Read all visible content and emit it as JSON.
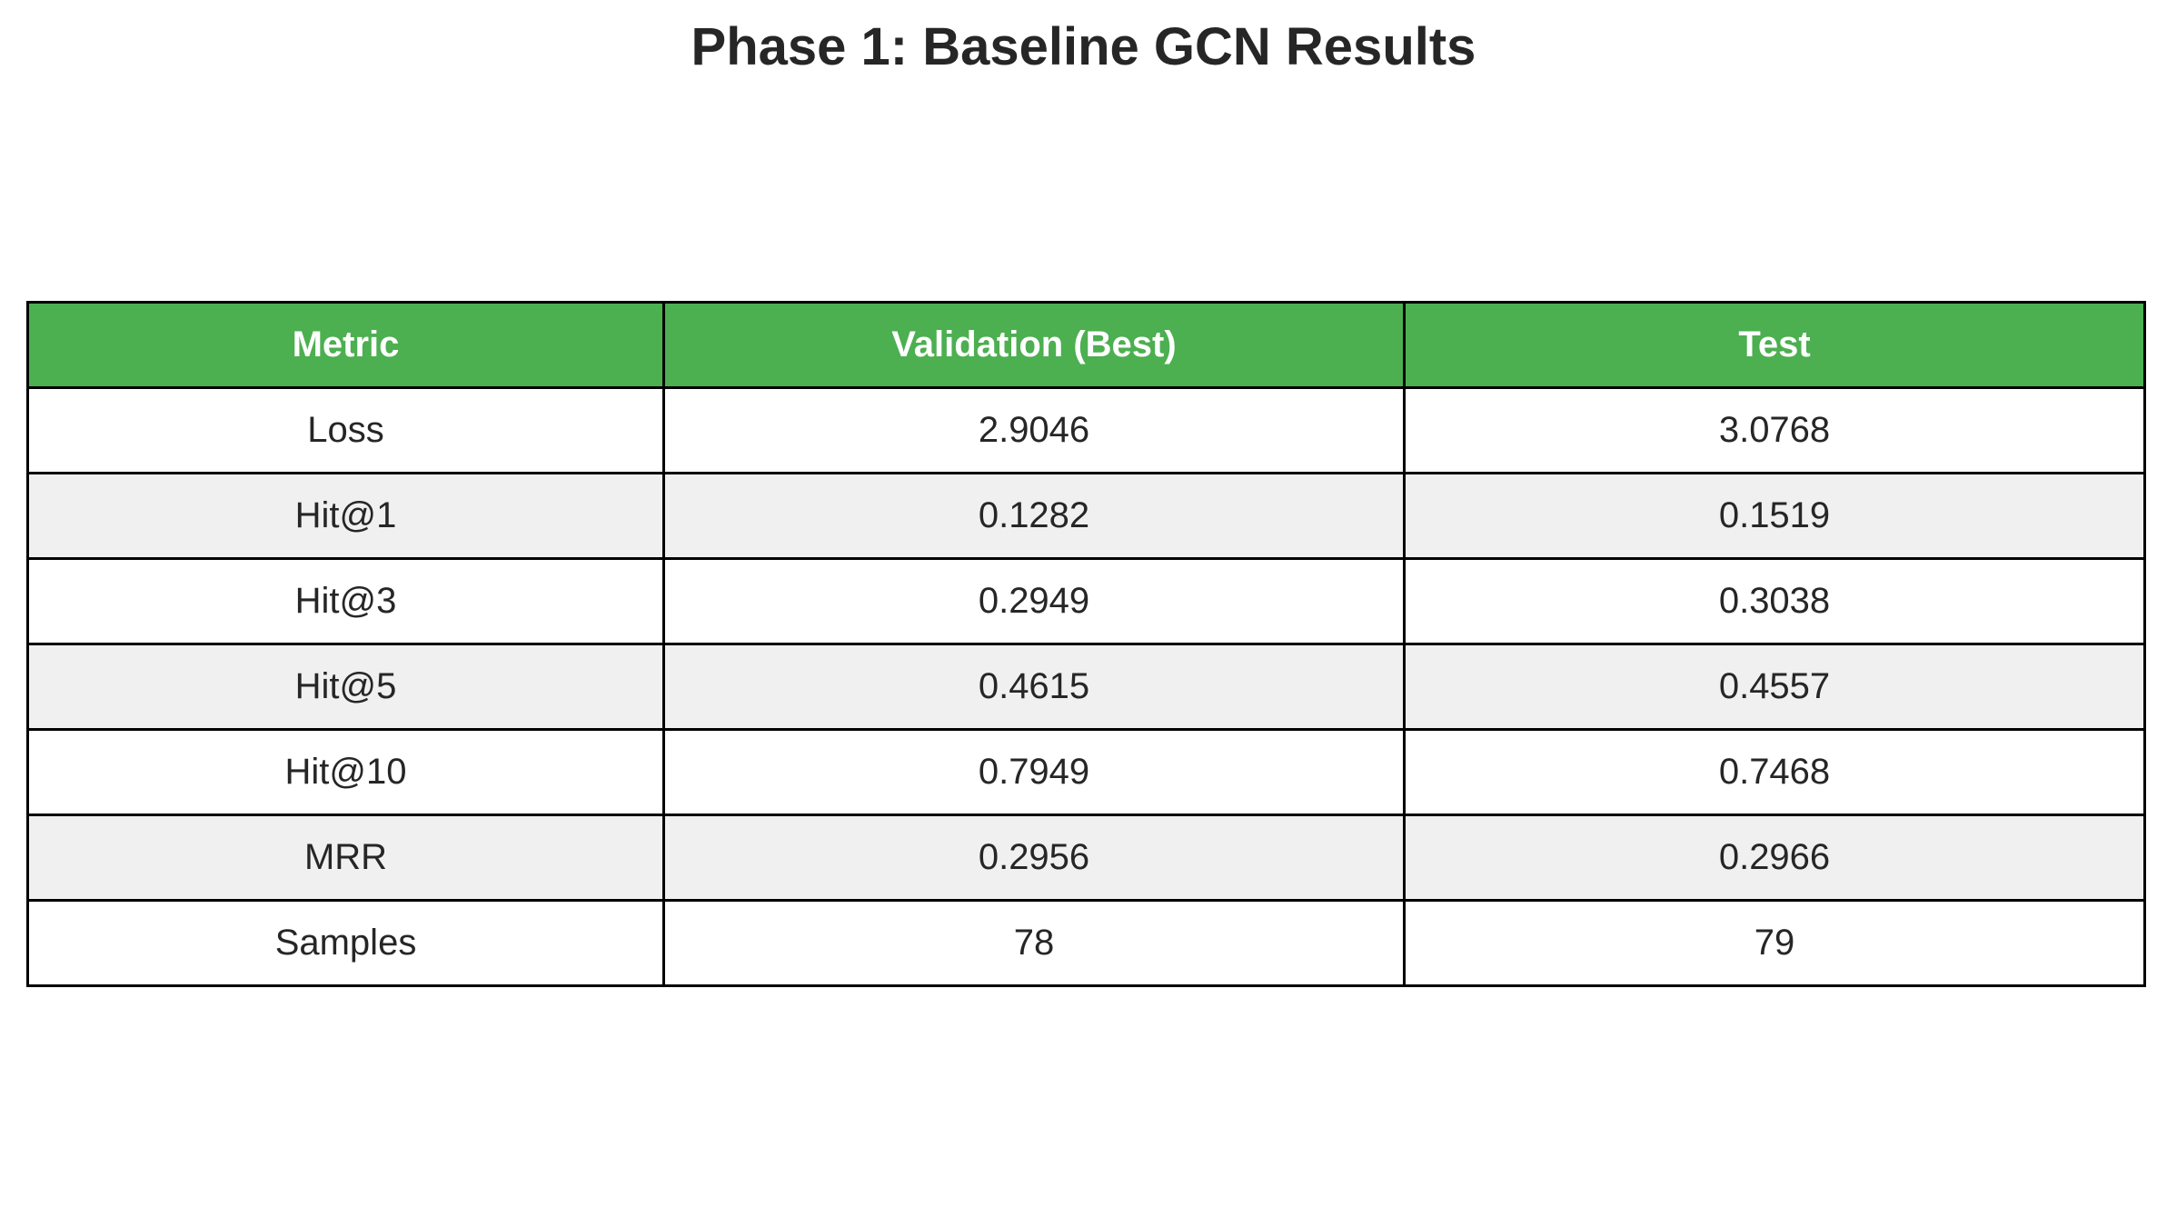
{
  "chart_data": {
    "type": "table",
    "title": "Phase 1: Baseline GCN Results",
    "columns": [
      "Metric",
      "Validation (Best)",
      "Test"
    ],
    "rows": [
      [
        "Loss",
        "2.9046",
        "3.0768"
      ],
      [
        "Hit@1",
        "0.1282",
        "0.1519"
      ],
      [
        "Hit@3",
        "0.2949",
        "0.3038"
      ],
      [
        "Hit@5",
        "0.4615",
        "0.4557"
      ],
      [
        "Hit@10",
        "0.7949",
        "0.7468"
      ],
      [
        "MRR",
        "0.2956",
        "0.2966"
      ],
      [
        "Samples",
        "78",
        "79"
      ]
    ],
    "colors": {
      "header_bg": "#4caf50",
      "header_text": "#ffffff",
      "row_alt_bg": "#f0f0f0",
      "row_bg": "#ffffff",
      "border": "#000000"
    }
  }
}
